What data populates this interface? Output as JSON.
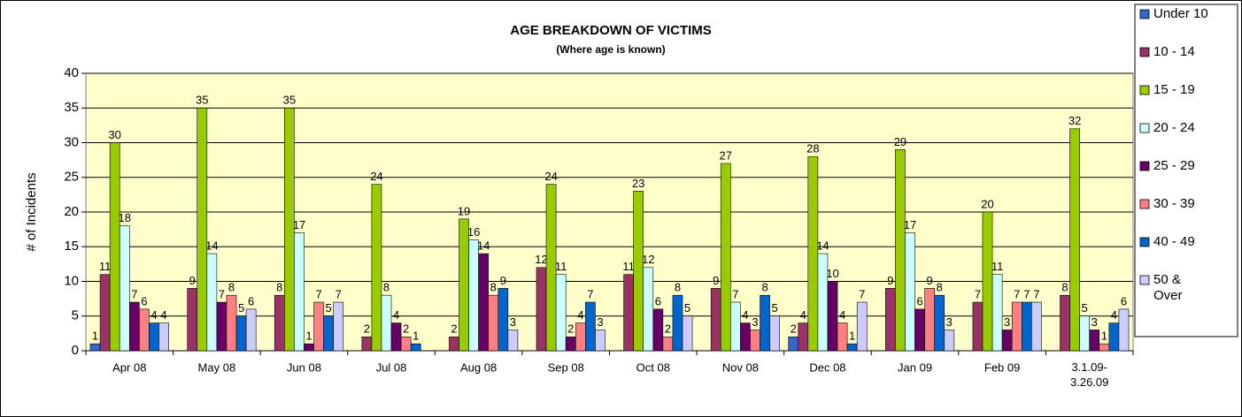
{
  "chart_data": {
    "type": "bar",
    "title": "AGE BREAKDOWN OF VICTIMS",
    "subtitle": "(Where age is known)",
    "y_label": "# of Incidents",
    "categories": [
      "Apr 08",
      "May 08",
      "Jun 08",
      "Jul 08",
      "Aug 08",
      "Sep 08",
      "Oct 08",
      "Nov 08",
      "Dec 08",
      "Jan 09",
      "Feb 09",
      "3.1.09-3.26.09"
    ],
    "series": [
      {
        "name": "Under 10",
        "color": "#3366cc",
        "values": [
          1,
          null,
          null,
          null,
          null,
          null,
          null,
          null,
          2,
          null,
          null,
          null
        ]
      },
      {
        "name": "10 - 14",
        "color": "#993366",
        "values": [
          11,
          9,
          8,
          2,
          2,
          12,
          11,
          9,
          4,
          9,
          7,
          8
        ]
      },
      {
        "name": "15 - 19",
        "color": "#99cc00",
        "values": [
          30,
          35,
          35,
          24,
          19,
          24,
          23,
          27,
          28,
          29,
          20,
          32
        ]
      },
      {
        "name": "20 - 24",
        "color": "#ccffff",
        "values": [
          18,
          14,
          17,
          8,
          16,
          11,
          12,
          7,
          14,
          17,
          11,
          5
        ]
      },
      {
        "name": "25 - 29",
        "color": "#660066",
        "values": [
          7,
          7,
          1,
          4,
          14,
          2,
          6,
          4,
          10,
          6,
          3,
          3
        ]
      },
      {
        "name": "30 - 39",
        "color": "#ff8080",
        "values": [
          6,
          8,
          7,
          2,
          8,
          4,
          2,
          3,
          4,
          9,
          7,
          1
        ]
      },
      {
        "name": "40 - 49",
        "color": "#0066cc",
        "values": [
          4,
          5,
          5,
          1,
          9,
          7,
          8,
          8,
          1,
          8,
          7,
          4
        ]
      },
      {
        "name": "50 & Over",
        "color": "#ccccff",
        "values": [
          4,
          6,
          7,
          null,
          3,
          3,
          5,
          5,
          7,
          3,
          7,
          6
        ]
      }
    ],
    "ylim": [
      0,
      40
    ],
    "yticks": [
      0,
      5,
      10,
      15,
      20,
      25,
      30,
      35,
      40
    ],
    "grid": true,
    "legend": "right",
    "plot_background": "#ffffcc"
  }
}
